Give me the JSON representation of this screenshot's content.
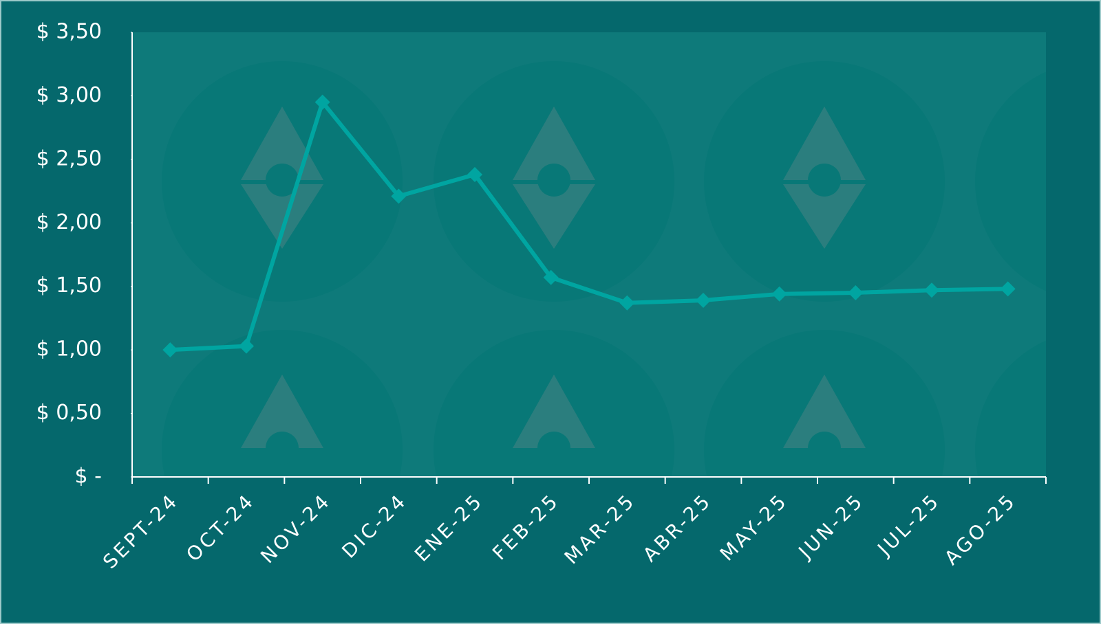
{
  "chart_data": {
    "type": "line",
    "categories": [
      "SEPT-24",
      "OCT-24",
      "NOV-24",
      "DIC-24",
      "ENE-25",
      "FEB-25",
      "MAR-25",
      "ABR-25",
      "MAY-25",
      "JUN-25",
      "JUL-25",
      "AGO-25"
    ],
    "series": [
      {
        "color": "#00a5a1",
        "values": [
          1.0,
          1.03,
          2.95,
          2.21,
          2.38,
          1.57,
          1.37,
          1.39,
          1.44,
          1.45,
          1.47,
          1.48
        ]
      }
    ],
    "ylim": [
      0,
      3.5
    ],
    "yticks": [
      {
        "value": 0,
        "label": "$ -"
      },
      {
        "value": 0.5,
        "label": "$ 0,50"
      },
      {
        "value": 1,
        "label": "$ 1,00"
      },
      {
        "value": 1.5,
        "label": "$ 1,50"
      },
      {
        "value": 2,
        "label": "$ 2,00"
      },
      {
        "value": 2.5,
        "label": "$ 2,50"
      },
      {
        "value": 3,
        "label": "$ 3,00"
      },
      {
        "value": 3.5,
        "label": "$ 3,50"
      }
    ]
  }
}
